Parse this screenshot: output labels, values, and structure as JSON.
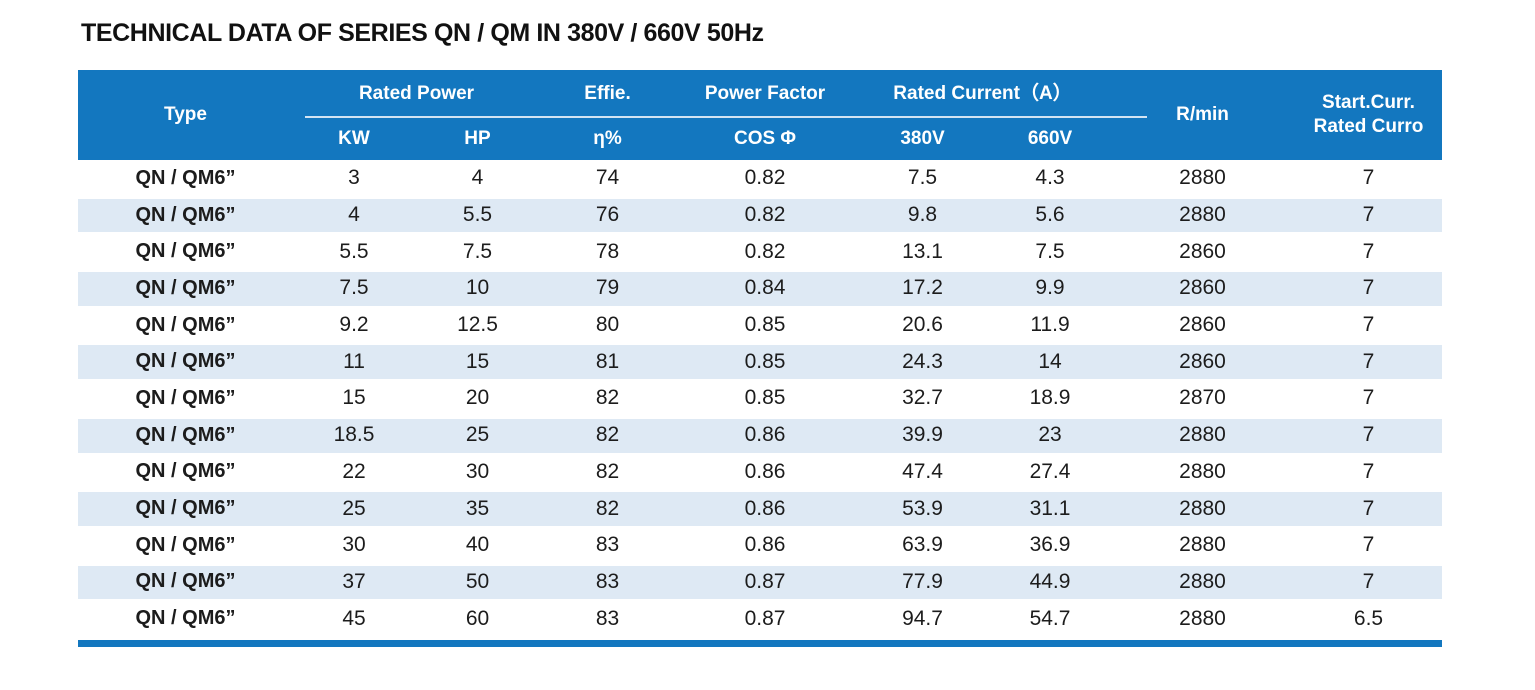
{
  "page": {
    "title": "TECHNICAL DATA OF SERIES QN / QM IN 380V / 660V 50Hz"
  },
  "colors": {
    "header_bg": "#1377bf",
    "stripe_bg": "#dee9f4",
    "header_text": "#ffffff",
    "body_text": "#1c1c1c",
    "bottom_bar": "#1377bf"
  },
  "table": {
    "header": {
      "type": "Type",
      "rated_power": "Rated Power",
      "kw": "KW",
      "hp": "HP",
      "effie": "Effie.",
      "eta": "η%",
      "power_factor": "Power Factor",
      "cos_phi": "COS Φ",
      "rated_current": "Rated Current（A）",
      "v380": "380V",
      "v660": "660V",
      "rpm": "R/min",
      "start_curr_line1": "Start.Curr.",
      "start_curr_line2": "Rated Curro"
    },
    "columns_order": [
      "type",
      "kw",
      "hp",
      "eta",
      "cos",
      "a380",
      "a660",
      "rpm",
      "start"
    ],
    "rows": [
      {
        "type": "QN / QM6”",
        "kw": "3",
        "hp": "4",
        "eta": "74",
        "cos": "0.82",
        "a380": "7.5",
        "a660": "4.3",
        "rpm": "2880",
        "start": "7"
      },
      {
        "type": "QN / QM6”",
        "kw": "4",
        "hp": "5.5",
        "eta": "76",
        "cos": "0.82",
        "a380": "9.8",
        "a660": "5.6",
        "rpm": "2880",
        "start": "7"
      },
      {
        "type": "QN / QM6”",
        "kw": "5.5",
        "hp": "7.5",
        "eta": "78",
        "cos": "0.82",
        "a380": "13.1",
        "a660": "7.5",
        "rpm": "2860",
        "start": "7"
      },
      {
        "type": "QN / QM6”",
        "kw": "7.5",
        "hp": "10",
        "eta": "79",
        "cos": "0.84",
        "a380": "17.2",
        "a660": "9.9",
        "rpm": "2860",
        "start": "7"
      },
      {
        "type": "QN / QM6”",
        "kw": "9.2",
        "hp": "12.5",
        "eta": "80",
        "cos": "0.85",
        "a380": "20.6",
        "a660": "11.9",
        "rpm": "2860",
        "start": "7"
      },
      {
        "type": "QN / QM6”",
        "kw": "11",
        "hp": "15",
        "eta": "81",
        "cos": "0.85",
        "a380": "24.3",
        "a660": "14",
        "rpm": "2860",
        "start": "7"
      },
      {
        "type": "QN / QM6”",
        "kw": "15",
        "hp": "20",
        "eta": "82",
        "cos": "0.85",
        "a380": "32.7",
        "a660": "18.9",
        "rpm": "2870",
        "start": "7"
      },
      {
        "type": "QN / QM6”",
        "kw": "18.5",
        "hp": "25",
        "eta": "82",
        "cos": "0.86",
        "a380": "39.9",
        "a660": "23",
        "rpm": "2880",
        "start": "7"
      },
      {
        "type": "QN / QM6”",
        "kw": "22",
        "hp": "30",
        "eta": "82",
        "cos": "0.86",
        "a380": "47.4",
        "a660": "27.4",
        "rpm": "2880",
        "start": "7"
      },
      {
        "type": "QN / QM6”",
        "kw": "25",
        "hp": "35",
        "eta": "82",
        "cos": "0.86",
        "a380": "53.9",
        "a660": "31.1",
        "rpm": "2880",
        "start": "7"
      },
      {
        "type": "QN / QM6”",
        "kw": "30",
        "hp": "40",
        "eta": "83",
        "cos": "0.86",
        "a380": "63.9",
        "a660": "36.9",
        "rpm": "2880",
        "start": "7"
      },
      {
        "type": "QN / QM6”",
        "kw": "37",
        "hp": "50",
        "eta": "83",
        "cos": "0.87",
        "a380": "77.9",
        "a660": "44.9",
        "rpm": "2880",
        "start": "7"
      },
      {
        "type": "QN / QM6”",
        "kw": "45",
        "hp": "60",
        "eta": "83",
        "cos": "0.87",
        "a380": "94.7",
        "a660": "54.7",
        "rpm": "2880",
        "start": "6.5"
      }
    ]
  }
}
